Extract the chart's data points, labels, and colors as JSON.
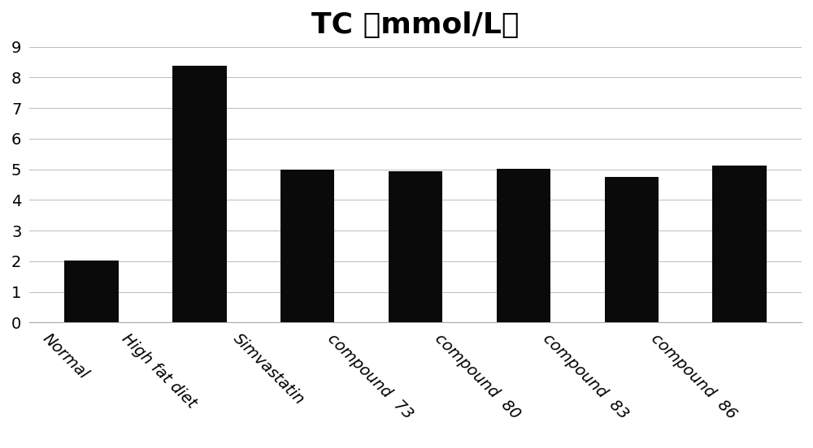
{
  "categories": [
    "Normal",
    "High fat diet",
    "Simvastatin",
    "compound  73",
    "compound  80",
    "compound  83",
    "compound  86"
  ],
  "values": [
    2.02,
    8.38,
    4.98,
    4.93,
    5.02,
    4.75,
    5.12
  ],
  "bar_color": "#0a0a0a",
  "title": "TC （mmol/L）",
  "title_fontsize": 26,
  "title_fontweight": "bold",
  "ylim": [
    0,
    9
  ],
  "yticks": [
    0,
    1,
    2,
    3,
    4,
    5,
    6,
    7,
    8,
    9
  ],
  "background_color": "#ffffff",
  "grid_color": "#bbbbbb",
  "tick_label_fontsize": 14,
  "xlabel_rotation": -45,
  "bar_width": 0.5
}
